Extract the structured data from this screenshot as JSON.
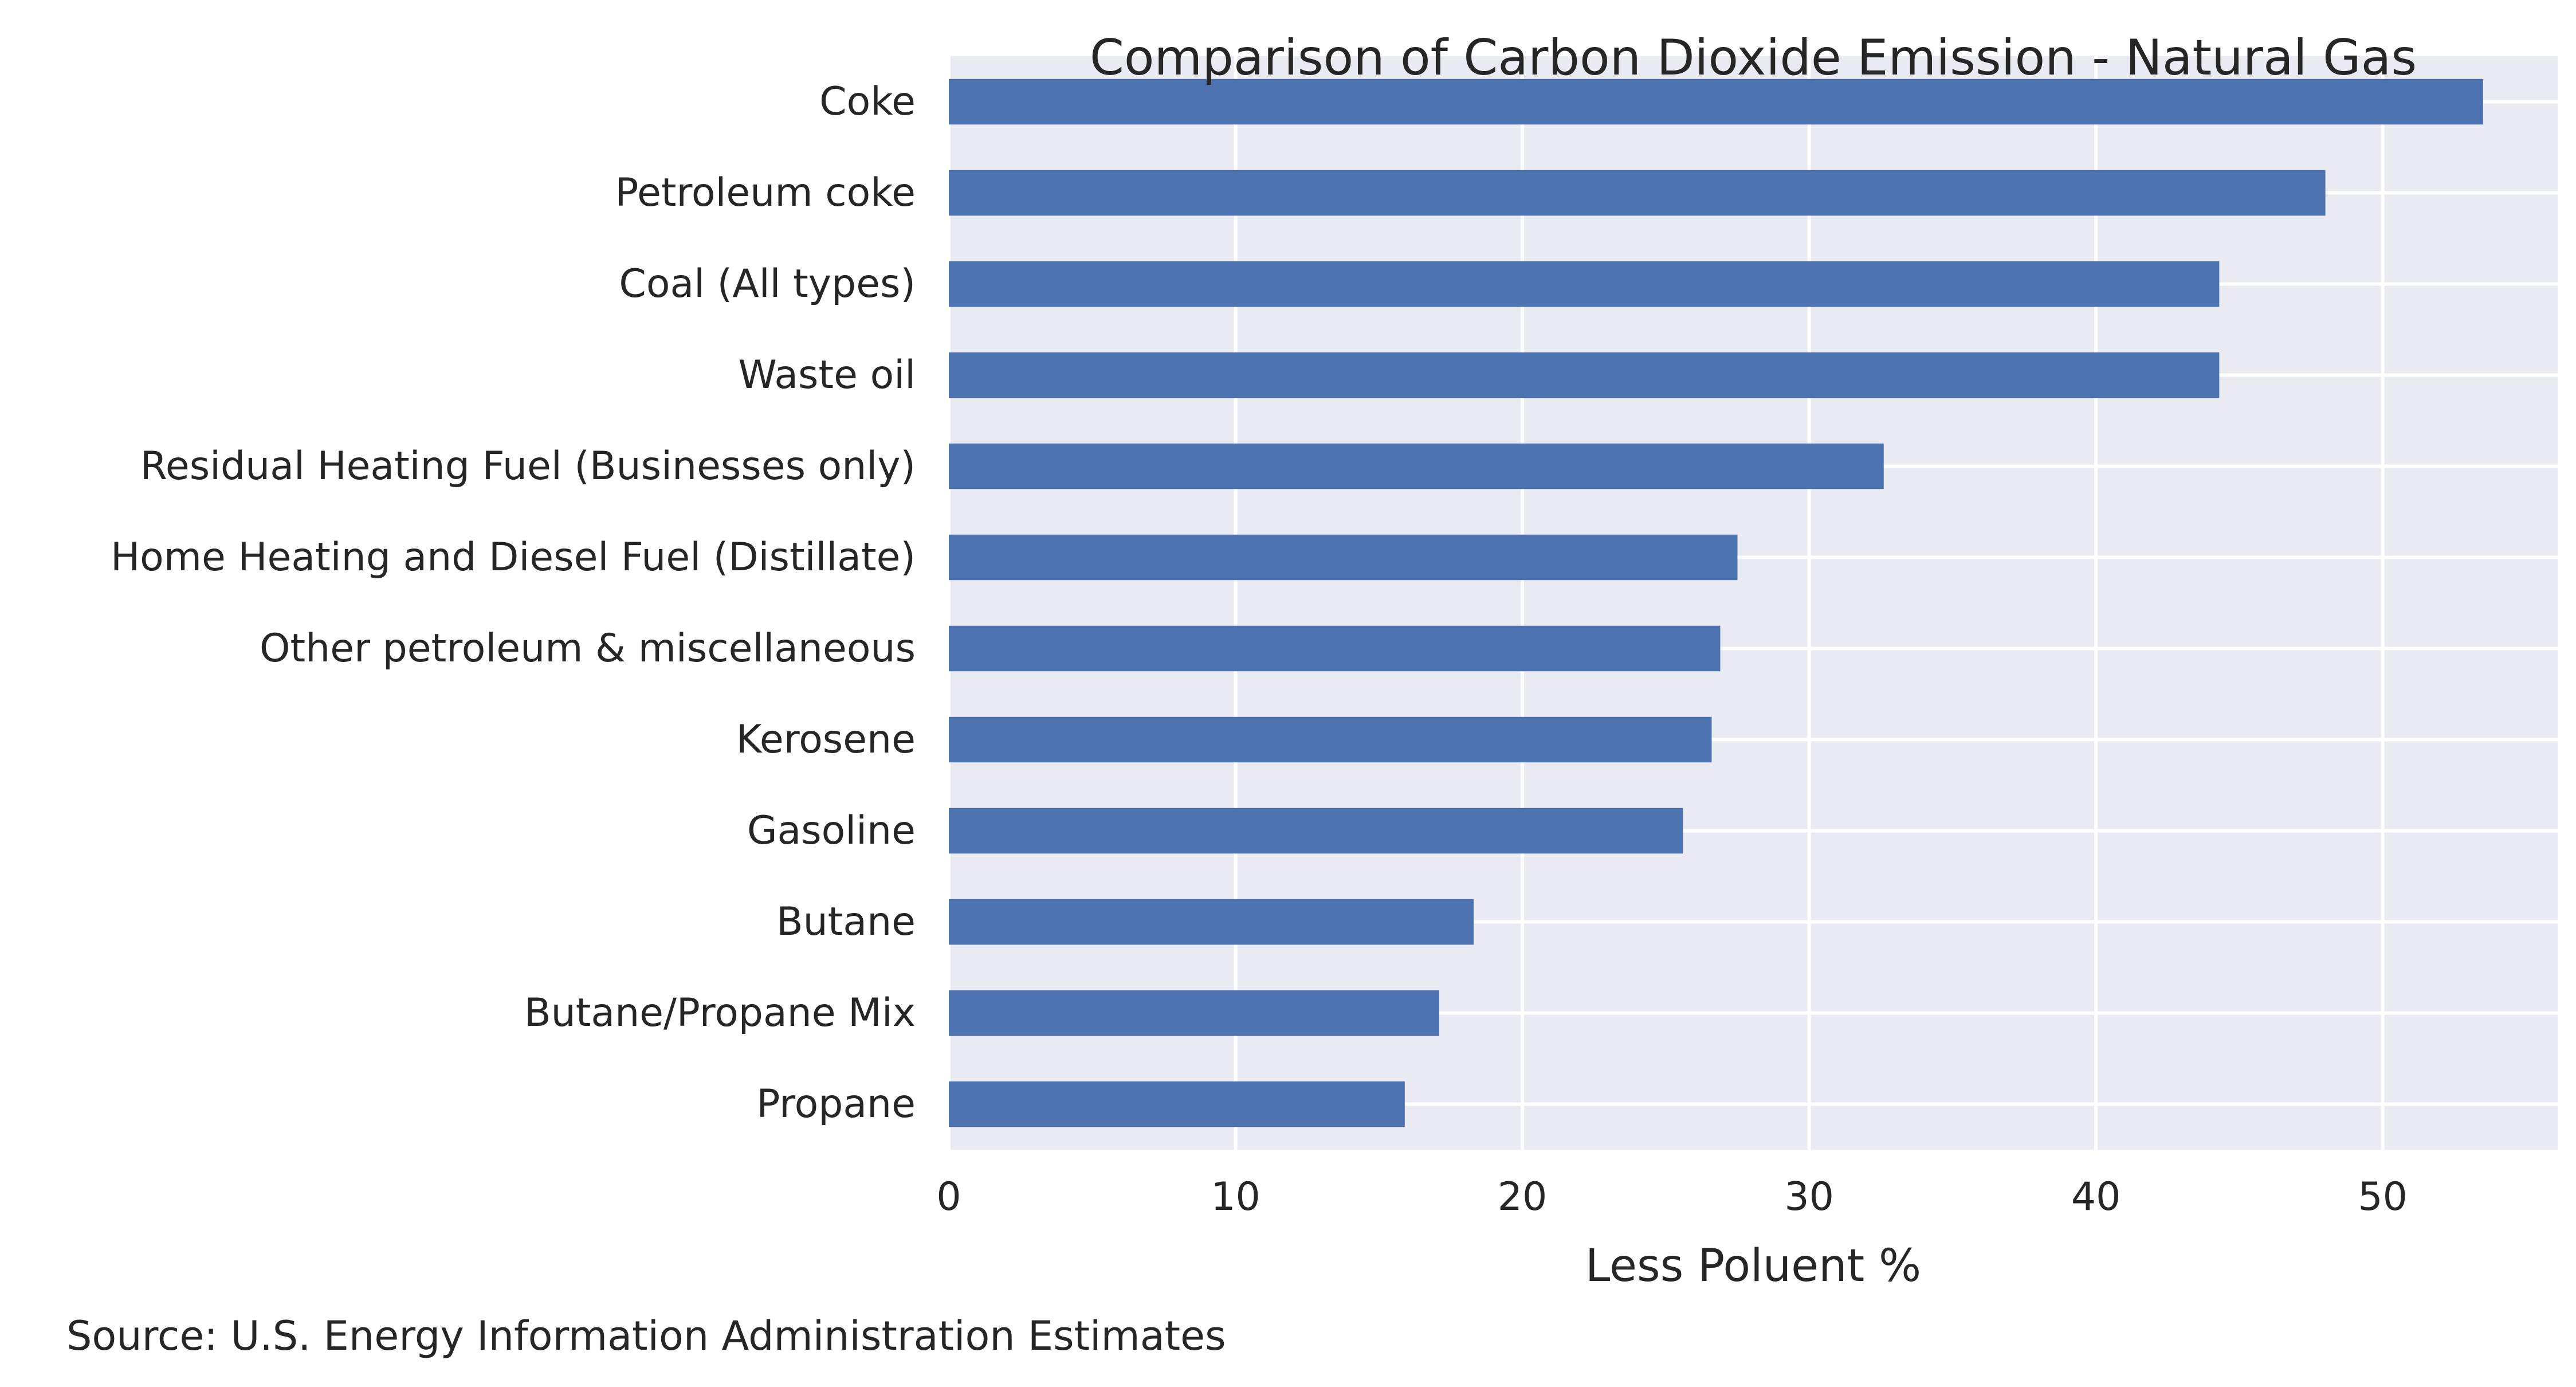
{
  "chart_data": {
    "type": "bar",
    "orientation": "horizontal",
    "title": "Comparison of Carbon Dioxide Emission - Natural Gas",
    "xlabel": "Less Poluent %",
    "ylabel": "",
    "categories": [
      "Coke",
      "Petroleum coke",
      "Coal (All types)",
      "Waste oil",
      "Residual Heating Fuel (Businesses only)",
      "Home Heating and Diesel Fuel (Distillate)",
      "Other petroleum & miscellaneous",
      "Kerosene",
      "Gasoline",
      "Butane",
      "Butane/Propane Mix",
      "Propane"
    ],
    "values": [
      53.5,
      48.0,
      44.3,
      44.3,
      32.6,
      27.5,
      26.9,
      26.6,
      25.6,
      18.3,
      17.1,
      15.9
    ],
    "xlim": [
      0,
      56.1
    ],
    "xticks": [
      0,
      10,
      20,
      30,
      40,
      50
    ],
    "grid": true,
    "bar_color": "#4c72b0",
    "background_color": "#eaeaf2",
    "grid_color": "#ffffff",
    "source_note": "Source: U.S. Energy Information Administration Estimates"
  }
}
